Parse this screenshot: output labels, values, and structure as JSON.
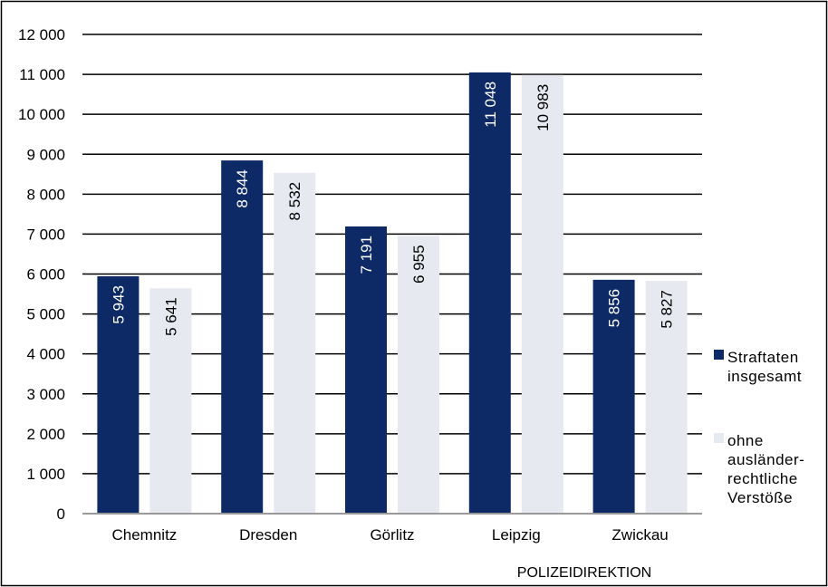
{
  "chart_data": {
    "type": "bar",
    "title": "",
    "xlabel": "POLIZEIDIREKTION",
    "ylabel": "",
    "ylim": [
      0,
      12000
    ],
    "ytick_step": 1000,
    "ytick_labels": [
      "0",
      "1 000",
      "2 000",
      "3 000",
      "4 000",
      "5 000",
      "6 000",
      "7 000",
      "8 000",
      "9 000",
      "10 000",
      "11 000",
      "12 000"
    ],
    "grid": true,
    "legend_position": "right",
    "categories": [
      "Chemnitz",
      "Dresden",
      "Görlitz",
      "Leipzig",
      "Zwickau"
    ],
    "series": [
      {
        "name_lines": [
          "Straftaten",
          "insgesamt"
        ],
        "color": "#0e2a66",
        "label_color": "#ffffff",
        "values": [
          5943,
          8844,
          7191,
          11048,
          5856
        ],
        "data_labels": [
          "5 943",
          "8 844",
          "7 191",
          "11 048",
          "5 856"
        ]
      },
      {
        "name_lines": [
          "ohne",
          "ausländer-",
          "rechtliche",
          "Verstöße"
        ],
        "color": "#e7e9f0",
        "label_color": "#000000",
        "values": [
          5641,
          8532,
          6955,
          10983,
          5827
        ],
        "data_labels": [
          "5 641",
          "8 532",
          "6 955",
          "10 983",
          "5 827"
        ]
      }
    ]
  }
}
